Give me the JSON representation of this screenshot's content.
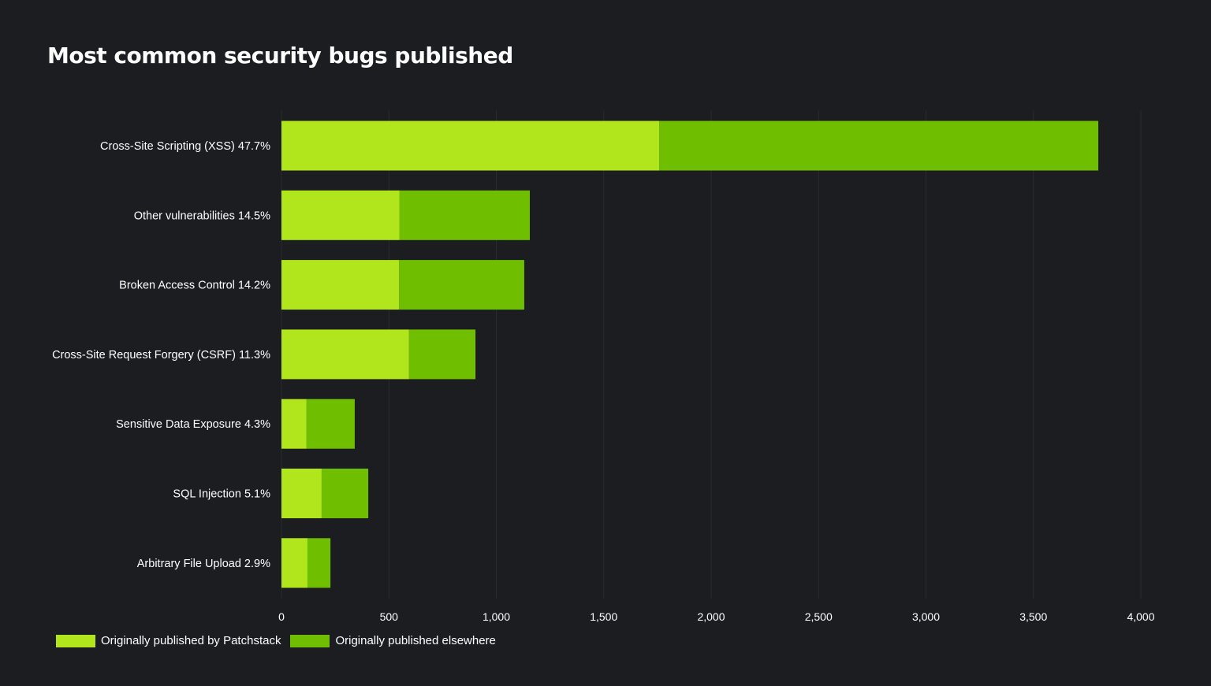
{
  "chart_data": {
    "type": "bar",
    "orientation": "horizontal",
    "stacked": true,
    "title": "Most common security bugs published",
    "categories": [
      "Cross-Site Scripting (XSS) 47.7%",
      "Other vulnerabilities 14.5%",
      "Broken Access Control 14.2%",
      "Cross-Site Request Forgery (CSRF) 11.3%",
      "Sensitive Data Exposure 4.3%",
      "SQL Injection 5.1%",
      "Arbitrary File Upload 2.9%"
    ],
    "series": [
      {
        "name": "Originally published by Patchstack",
        "color": "#b2e61c",
        "values": [
          1758,
          550,
          547,
          594,
          117,
          187,
          121
        ]
      },
      {
        "name": "Originally published elsewhere",
        "color": "#6fbf00",
        "values": [
          2044,
          606,
          583,
          309,
          224,
          217,
          107
        ]
      }
    ],
    "xlim": [
      0,
      4000
    ],
    "xticks": [
      0,
      500,
      1000,
      1500,
      2000,
      2500,
      3000,
      3500,
      4000
    ],
    "xtick_labels": [
      "0",
      "500",
      "1,000",
      "1,500",
      "2,000",
      "2,500",
      "3,000",
      "3,500",
      "4,000"
    ],
    "grid": "vertical",
    "legend": "bottom-left",
    "xlabel": "",
    "ylabel": ""
  }
}
